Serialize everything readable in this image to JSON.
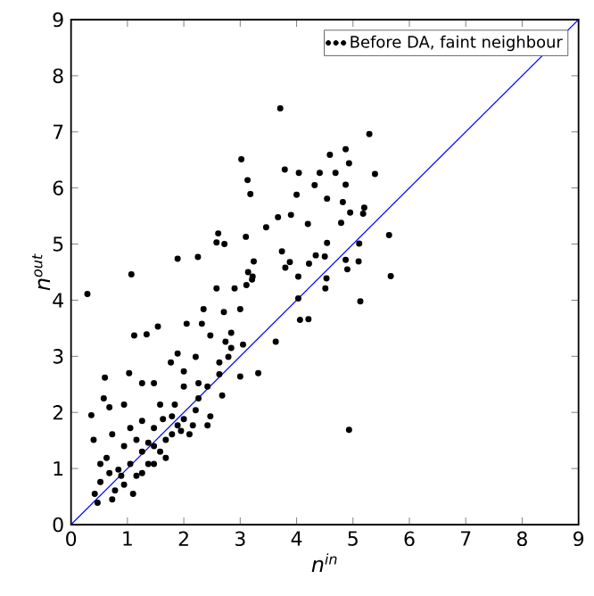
{
  "chart_data": {
    "type": "scatter",
    "xlabel": "n$^{in}$",
    "ylabel": "n$^{out}$",
    "xlim": [
      0,
      9
    ],
    "ylim": [
      0,
      9
    ],
    "xticks": [
      0,
      1,
      2,
      3,
      4,
      5,
      6,
      7,
      8,
      9
    ],
    "yticks": [
      0,
      1,
      2,
      3,
      4,
      5,
      6,
      7,
      8,
      9
    ],
    "grid": false,
    "legend": "top right",
    "marker": "circle",
    "series": [
      {
        "name": "Before DA, faint neighbour",
        "color": "#000000",
        "x": [
          3.71,
          5.29,
          3.02,
          4.87,
          4.59,
          4.93,
          3.79,
          4.04,
          4.41,
          4.69,
          5.39,
          3.13,
          4.32,
          4.87,
          3.18,
          4.0,
          4.54,
          4.82,
          5.2,
          4.95,
          3.9,
          3.67,
          5.18,
          4.79,
          4.2,
          3.46,
          2.61,
          5.64,
          2.58,
          2.72,
          3.1,
          4.54,
          5.11,
          3.74,
          4.34,
          4.5,
          1.89,
          2.25,
          3.24,
          3.88,
          4.22,
          4.87,
          5.1,
          3.8,
          4.9,
          3.14,
          1.07,
          5.67,
          3.22,
          4.03,
          4.53,
          0.29,
          5.13,
          4.51,
          4.03,
          4.06,
          4.21,
          2.58,
          2.9,
          2.35,
          2.71,
          1.54,
          1.12,
          1.34,
          2.05,
          2.32,
          2.47,
          3.0,
          3.32,
          3.0,
          3.63,
          3.05,
          2.74,
          2.47,
          4.93,
          0.6,
          1.03,
          1.26,
          1.47,
          1.77,
          1.89,
          2.21,
          0.58,
          0.68,
          0.36,
          0.94,
          0.4,
          1.26,
          2.1,
          2.42,
          2.68,
          2.0,
          1.58,
          1.79,
          1.89,
          1.47,
          0.47,
          0.73,
          0.52,
          0.84,
          1.05,
          1.26,
          1.47,
          1.68,
          0.94,
          0.63,
          0.52,
          1.16,
          0.94,
          1.37,
          1.58,
          1.79,
          2.0,
          2.21,
          2.26,
          2.42,
          2.63,
          2.79,
          2.84,
          1.16,
          0.73,
          1.05,
          0.42,
          0.78,
          1.26,
          1.68,
          1.47,
          1.1,
          0.89,
          0.68,
          1.95,
          2.16,
          1.84,
          1.37,
          1.63,
          2.26,
          2.0,
          2.63,
          2.84,
          3.11,
          3.21
        ],
        "values": [
          7.42,
          6.96,
          6.51,
          6.69,
          6.59,
          6.44,
          6.33,
          6.27,
          6.27,
          6.27,
          6.25,
          6.14,
          6.05,
          6.06,
          5.89,
          5.88,
          5.81,
          5.75,
          5.65,
          5.56,
          5.52,
          5.48,
          5.54,
          5.38,
          5.36,
          5.3,
          5.19,
          5.16,
          5.03,
          5.0,
          5.13,
          5.02,
          5.01,
          4.87,
          4.8,
          4.78,
          4.74,
          4.77,
          4.69,
          4.68,
          4.65,
          4.72,
          4.69,
          4.58,
          4.55,
          4.5,
          4.46,
          4.43,
          4.42,
          4.42,
          4.39,
          4.11,
          3.98,
          4.21,
          4.03,
          3.65,
          3.66,
          4.21,
          4.21,
          3.84,
          3.79,
          3.53,
          3.37,
          3.39,
          3.58,
          3.58,
          3.37,
          3.84,
          2.7,
          2.64,
          3.26,
          3.21,
          3.26,
          1.93,
          1.69,
          2.62,
          2.7,
          2.52,
          2.52,
          2.89,
          3.05,
          2.99,
          2.25,
          2.09,
          1.95,
          2.14,
          1.51,
          1.85,
          1.61,
          1.77,
          2.3,
          2.46,
          2.14,
          1.93,
          1.77,
          1.72,
          0.39,
          0.45,
          0.76,
          0.98,
          1.08,
          1.3,
          1.4,
          1.51,
          1.4,
          1.19,
          1.08,
          0.87,
          0.71,
          1.08,
          1.3,
          1.61,
          1.88,
          2.04,
          2.25,
          2.46,
          2.68,
          2.99,
          3.15,
          1.51,
          1.61,
          1.72,
          0.55,
          0.61,
          0.92,
          1.19,
          1.08,
          0.55,
          0.87,
          0.92,
          1.67,
          1.77,
          2.14,
          1.46,
          1.88,
          2.52,
          2.73,
          2.89,
          3.42,
          4.27,
          4.37
        ]
      },
      {
        "type": "line",
        "color": "#0000ff",
        "marker": "none",
        "line_style": "solid",
        "x": [
          0,
          9
        ],
        "values": [
          0,
          9
        ]
      }
    ]
  }
}
